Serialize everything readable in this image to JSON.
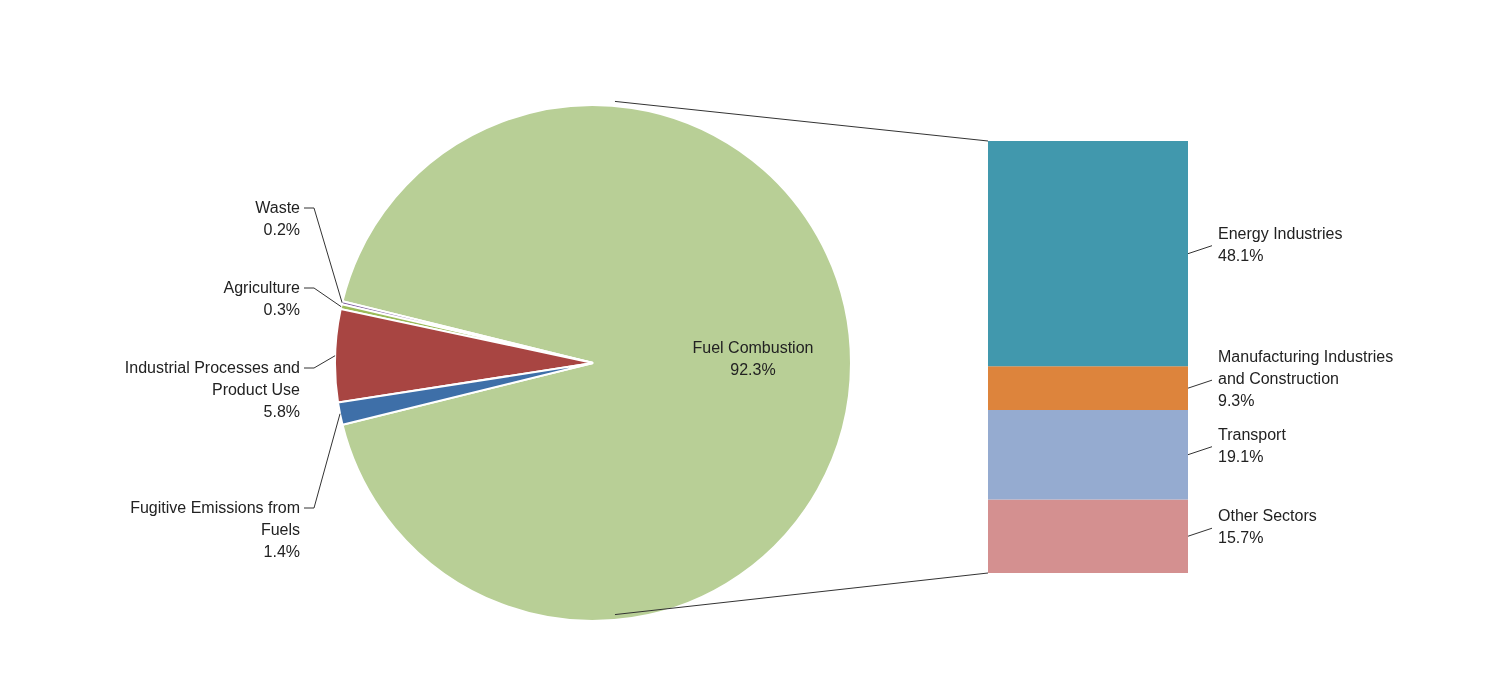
{
  "chart_data": [
    {
      "type": "pie",
      "categories": [
        "Fuel Combustion",
        "Waste",
        "Agriculture",
        "Industrial Processes and Product Use",
        "Fugitive Emissions from Fuels"
      ],
      "values": [
        92.3,
        0.2,
        0.3,
        5.8,
        1.4
      ],
      "colors": [
        "#b8cf96",
        "#7f5fa0",
        "#9bbb59",
        "#a84542",
        "#3e6fa8"
      ],
      "value_labels": [
        "92.3%",
        "0.2%",
        "0.3%",
        "5.8%",
        "1.4%"
      ]
    },
    {
      "type": "bar",
      "stacked": true,
      "categories": [
        null
      ],
      "tick_labels": false,
      "series": [
        {
          "name": "Other Sectors",
          "color": "#d49090",
          "values": [
            15.7
          ],
          "value_labels": [
            "15.7%"
          ]
        },
        {
          "name": "Transport",
          "color": "#95abd0",
          "values": [
            19.1
          ],
          "value_labels": [
            "19.1%"
          ]
        },
        {
          "name": "Manufacturing Industries and Construction",
          "color": "#dd843c",
          "values": [
            9.3
          ],
          "value_labels": [
            "9.3%"
          ]
        },
        {
          "name": "Energy Industries",
          "color": "#4198ad",
          "values": [
            48.1
          ],
          "value_labels": [
            "48.1%"
          ]
        }
      ]
    }
  ]
}
